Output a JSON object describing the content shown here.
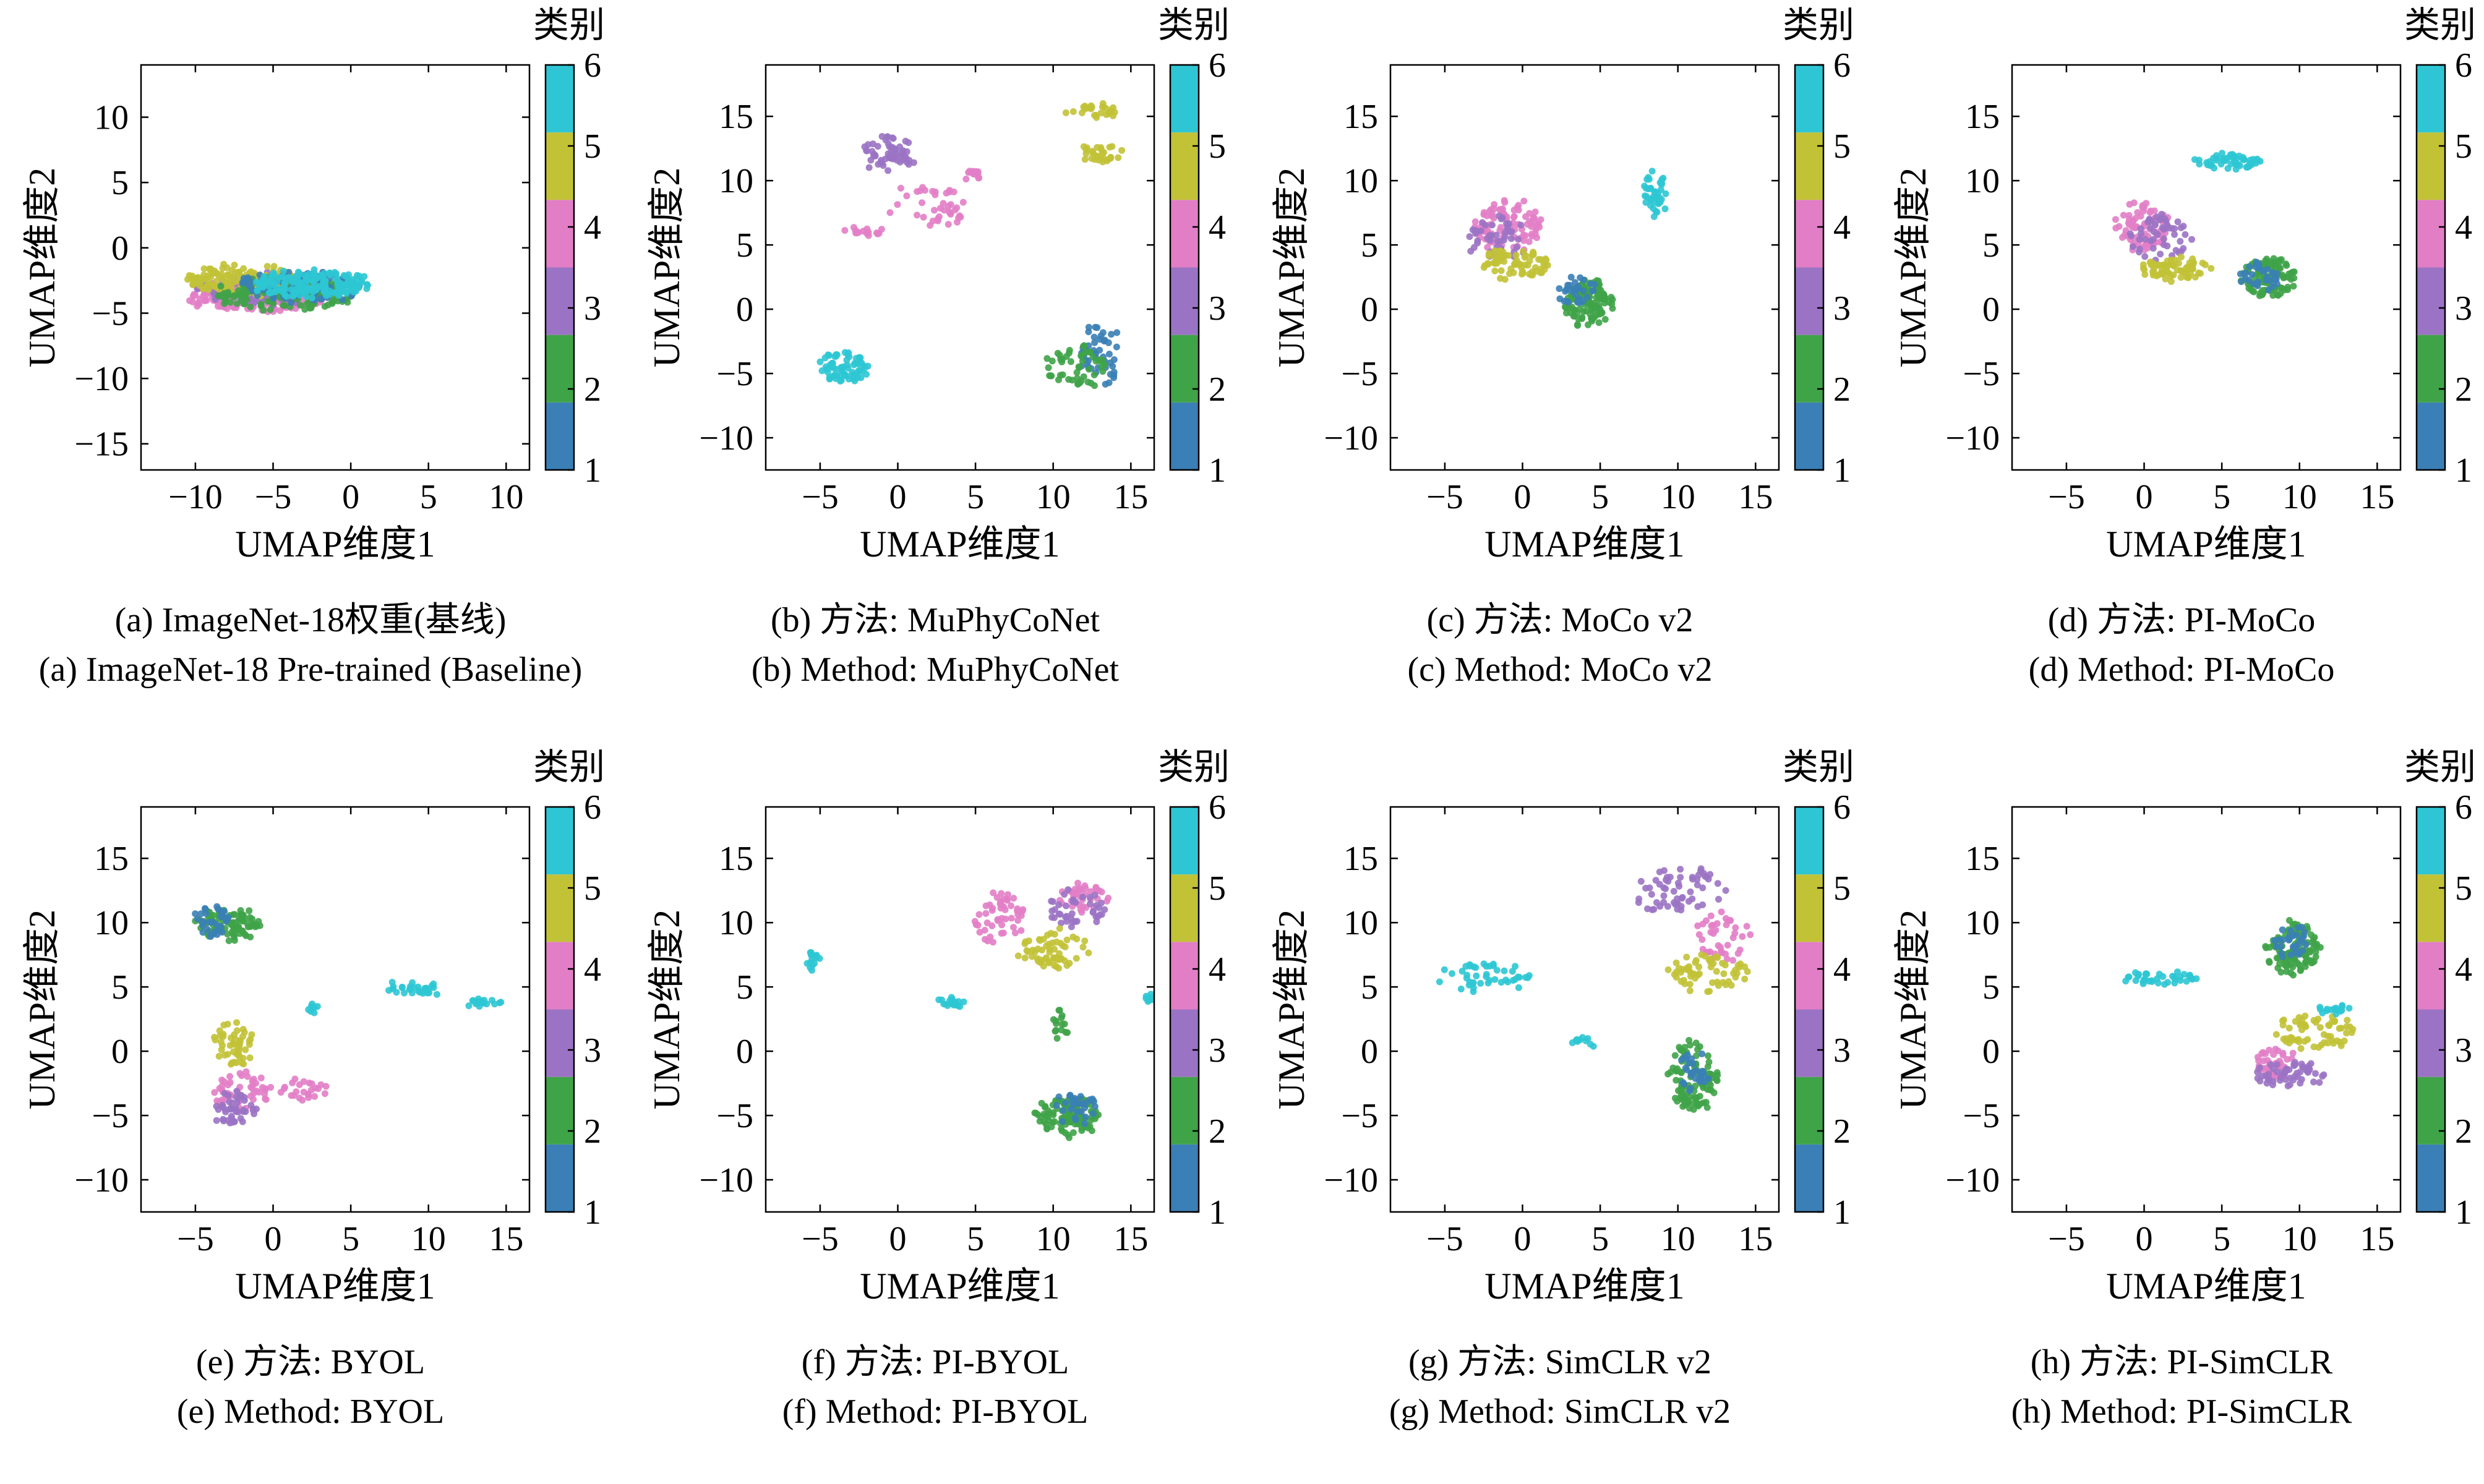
{
  "palette": {
    "1": "#3a7fb5",
    "2": "#3fa348",
    "3": "#9b73c4",
    "4": "#e27ec6",
    "5": "#c2c237",
    "6": "#2ec6d4"
  },
  "colorbar": {
    "title": "类别",
    "ticks": [
      "1",
      "2",
      "3",
      "4",
      "5",
      "6"
    ]
  },
  "chart_data": [
    {
      "type": "scatter",
      "id": "a",
      "caption_zh": "(a) ImageNet-18权重(基线)",
      "caption_en": "(a) ImageNet-18 Pre-trained (Baseline)",
      "xlabel": "UMAP维度1",
      "ylabel": "UMAP维度2",
      "xlim": [
        -13.5,
        11.5
      ],
      "ylim": [
        -17,
        14
      ],
      "xticks": [
        -10,
        -5,
        0,
        5,
        10
      ],
      "yticks": [
        -15,
        -10,
        -5,
        0,
        5,
        10
      ],
      "clusters": [
        {
          "cls": 4,
          "cx": -6.0,
          "cy": -3.8,
          "rx": 4.5,
          "ry": 1.0,
          "n": 170
        },
        {
          "cls": 3,
          "cx": -5.5,
          "cy": -3.2,
          "rx": 4.5,
          "ry": 1.2,
          "n": 150
        },
        {
          "cls": 5,
          "cx": -7.0,
          "cy": -2.5,
          "rx": 3.8,
          "ry": 1.0,
          "n": 140
        },
        {
          "cls": 2,
          "cx": -4.0,
          "cy": -3.5,
          "rx": 4.5,
          "ry": 1.2,
          "n": 150
        },
        {
          "cls": 1,
          "cx": -3.5,
          "cy": -3.0,
          "rx": 4.0,
          "ry": 1.2,
          "n": 90
        },
        {
          "cls": 6,
          "cx": -2.5,
          "cy": -2.8,
          "rx": 3.8,
          "ry": 1.0,
          "n": 170
        }
      ]
    },
    {
      "type": "scatter",
      "id": "b",
      "caption_zh": "(b) 方法: MuPhyCoNet",
      "caption_en": "(b) Method: MuPhyCoNet",
      "xlabel": "UMAP维度1",
      "ylabel": "UMAP维度2",
      "xlim": [
        -8.5,
        16.5
      ],
      "ylim": [
        -12.5,
        19
      ],
      "xticks": [
        -5,
        0,
        5,
        10,
        15
      ],
      "yticks": [
        -10,
        -5,
        0,
        5,
        10,
        15
      ],
      "clusters": [
        {
          "cls": 3,
          "cx": -0.5,
          "cy": 12.0,
          "rx": 1.6,
          "ry": 1.6,
          "n": 60
        },
        {
          "cls": 4,
          "cx": 2.0,
          "cy": 8.0,
          "rx": 2.8,
          "ry": 1.6,
          "n": 40
        },
        {
          "cls": 4,
          "cx": -2.5,
          "cy": 6.0,
          "rx": 1.5,
          "ry": 0.3,
          "n": 15
        },
        {
          "cls": 4,
          "cx": 4.8,
          "cy": 10.5,
          "rx": 0.5,
          "ry": 0.4,
          "n": 15
        },
        {
          "cls": 5,
          "cx": 12.5,
          "cy": 15.5,
          "rx": 1.6,
          "ry": 0.5,
          "n": 25
        },
        {
          "cls": 5,
          "cx": 13.0,
          "cy": 12.0,
          "rx": 1.6,
          "ry": 0.6,
          "n": 30
        },
        {
          "cls": 6,
          "cx": -3.5,
          "cy": -4.5,
          "rx": 1.6,
          "ry": 1.2,
          "n": 70
        },
        {
          "cls": 1,
          "cx": 13.0,
          "cy": -3.5,
          "rx": 1.5,
          "ry": 2.5,
          "n": 50
        },
        {
          "cls": 2,
          "cx": 11.5,
          "cy": -4.5,
          "rx": 2.0,
          "ry": 1.5,
          "n": 50
        }
      ]
    },
    {
      "type": "scatter",
      "id": "c",
      "caption_zh": "(c) 方法: MoCo v2",
      "caption_en": "(c) Method: MoCo v2",
      "xlabel": "UMAP维度1",
      "ylabel": "UMAP维度2",
      "xlim": [
        -8.5,
        16.5
      ],
      "ylim": [
        -12.5,
        19
      ],
      "xticks": [
        -5,
        0,
        5,
        10,
        15
      ],
      "yticks": [
        -10,
        -5,
        0,
        5,
        10,
        15
      ],
      "clusters": [
        {
          "cls": 4,
          "cx": -1.0,
          "cy": 6.5,
          "rx": 2.2,
          "ry": 2.0,
          "n": 90
        },
        {
          "cls": 3,
          "cx": -1.5,
          "cy": 5.5,
          "rx": 2.0,
          "ry": 1.8,
          "n": 50
        },
        {
          "cls": 5,
          "cx": -0.5,
          "cy": 3.5,
          "rx": 2.2,
          "ry": 1.2,
          "n": 70
        },
        {
          "cls": 2,
          "cx": 4.3,
          "cy": 0.5,
          "rx": 1.5,
          "ry": 1.8,
          "n": 110
        },
        {
          "cls": 1,
          "cx": 3.5,
          "cy": 1.5,
          "rx": 1.2,
          "ry": 1.2,
          "n": 30
        },
        {
          "cls": 6,
          "cx": 8.5,
          "cy": 9.0,
          "rx": 0.8,
          "ry": 1.8,
          "n": 40
        }
      ]
    },
    {
      "type": "scatter",
      "id": "d",
      "caption_zh": "(d) 方法: PI-MoCo",
      "caption_en": "(d) Method: PI-MoCo",
      "xlabel": "UMAP维度1",
      "ylabel": "UMAP维度2",
      "xlim": [
        -8.5,
        16.5
      ],
      "ylim": [
        -12.5,
        19
      ],
      "xticks": [
        -5,
        0,
        5,
        10,
        15
      ],
      "yticks": [
        -10,
        -5,
        0,
        5,
        10,
        15
      ],
      "clusters": [
        {
          "cls": 6,
          "cx": 5.5,
          "cy": 11.5,
          "rx": 2.2,
          "ry": 0.6,
          "n": 50
        },
        {
          "cls": 4,
          "cx": 0.0,
          "cy": 6.5,
          "rx": 1.8,
          "ry": 1.8,
          "n": 80
        },
        {
          "cls": 3,
          "cx": 1.0,
          "cy": 5.5,
          "rx": 2.0,
          "ry": 1.8,
          "n": 50
        },
        {
          "cls": 5,
          "cx": 2.0,
          "cy": 3.2,
          "rx": 2.2,
          "ry": 0.9,
          "n": 70
        },
        {
          "cls": 2,
          "cx": 8.0,
          "cy": 2.5,
          "rx": 1.8,
          "ry": 1.5,
          "n": 100
        },
        {
          "cls": 1,
          "cx": 7.5,
          "cy": 2.5,
          "rx": 1.3,
          "ry": 1.2,
          "n": 30
        }
      ]
    },
    {
      "type": "scatter",
      "id": "e",
      "caption_zh": "(e) 方法: BYOL",
      "caption_en": "(e) Method: BYOL",
      "xlabel": "UMAP维度1",
      "ylabel": "UMAP维度2",
      "xlim": [
        -8.5,
        16.5
      ],
      "ylim": [
        -12.5,
        19
      ],
      "xticks": [
        -5,
        0,
        5,
        10,
        15
      ],
      "yticks": [
        -10,
        -5,
        0,
        5,
        10,
        15
      ],
      "clusters": [
        {
          "cls": 2,
          "cx": -3.0,
          "cy": 9.8,
          "rx": 2.0,
          "ry": 1.2,
          "n": 90
        },
        {
          "cls": 1,
          "cx": -4.0,
          "cy": 10.0,
          "rx": 1.2,
          "ry": 1.2,
          "n": 35
        },
        {
          "cls": 5,
          "cx": -2.5,
          "cy": 0.5,
          "rx": 1.2,
          "ry": 1.8,
          "n": 50
        },
        {
          "cls": 4,
          "cx": -2.0,
          "cy": -3.2,
          "rx": 1.8,
          "ry": 1.5,
          "n": 50
        },
        {
          "cls": 4,
          "cx": 2.0,
          "cy": -3.0,
          "rx": 1.5,
          "ry": 0.8,
          "n": 25
        },
        {
          "cls": 3,
          "cx": -2.5,
          "cy": -4.5,
          "rx": 1.5,
          "ry": 1.5,
          "n": 45
        },
        {
          "cls": 6,
          "cx": 9.0,
          "cy": 4.8,
          "rx": 1.8,
          "ry": 0.4,
          "n": 30
        },
        {
          "cls": 6,
          "cx": 13.5,
          "cy": 3.8,
          "rx": 1.2,
          "ry": 0.3,
          "n": 20
        },
        {
          "cls": 6,
          "cx": 2.5,
          "cy": 3.3,
          "rx": 0.3,
          "ry": 0.4,
          "n": 8
        }
      ]
    },
    {
      "type": "scatter",
      "id": "f",
      "caption_zh": "(f) 方法: PI-BYOL",
      "caption_en": "(f) Method: PI-BYOL",
      "xlabel": "UMAP维度1",
      "ylabel": "UMAP维度2",
      "xlim": [
        -8.5,
        16.5
      ],
      "ylim": [
        -12.5,
        19
      ],
      "xticks": [
        -5,
        0,
        5,
        10,
        15
      ],
      "yticks": [
        -10,
        -5,
        0,
        5,
        10,
        15
      ],
      "clusters": [
        {
          "cls": 4,
          "cx": 6.5,
          "cy": 10.5,
          "rx": 1.8,
          "ry": 2.0,
          "n": 50
        },
        {
          "cls": 4,
          "cx": 12.0,
          "cy": 12.0,
          "rx": 1.8,
          "ry": 1.0,
          "n": 40
        },
        {
          "cls": 3,
          "cx": 11.5,
          "cy": 11.0,
          "rx": 1.8,
          "ry": 1.6,
          "n": 40
        },
        {
          "cls": 5,
          "cx": 10.0,
          "cy": 8.0,
          "rx": 2.2,
          "ry": 1.5,
          "n": 60
        },
        {
          "cls": 2,
          "cx": 10.5,
          "cy": 2.0,
          "rx": 0.4,
          "ry": 1.2,
          "n": 15
        },
        {
          "cls": 2,
          "cx": 11.0,
          "cy": -5.0,
          "rx": 2.0,
          "ry": 1.5,
          "n": 110
        },
        {
          "cls": 1,
          "cx": 11.5,
          "cy": -4.5,
          "rx": 1.5,
          "ry": 1.2,
          "n": 30
        },
        {
          "cls": 6,
          "cx": -5.5,
          "cy": 7.0,
          "rx": 0.5,
          "ry": 0.8,
          "n": 15
        },
        {
          "cls": 6,
          "cx": 3.5,
          "cy": 3.8,
          "rx": 1.0,
          "ry": 0.4,
          "n": 20
        },
        {
          "cls": 6,
          "cx": 16.0,
          "cy": 4.2,
          "rx": 0.7,
          "ry": 0.3,
          "n": 10
        }
      ]
    },
    {
      "type": "scatter",
      "id": "g",
      "caption_zh": "(g) 方法: SimCLR v2",
      "caption_en": "(g) Method: SimCLR v2",
      "xlabel": "UMAP维度1",
      "ylabel": "UMAP维度2",
      "xlim": [
        -8.5,
        16.5
      ],
      "ylim": [
        -12.5,
        19
      ],
      "xticks": [
        -5,
        0,
        5,
        10,
        15
      ],
      "yticks": [
        -10,
        -5,
        0,
        5,
        10,
        15
      ],
      "clusters": [
        {
          "cls": 6,
          "cx": -2.5,
          "cy": 5.8,
          "rx": 3.0,
          "ry": 1.2,
          "n": 45
        },
        {
          "cls": 6,
          "cx": 4.0,
          "cy": 0.8,
          "rx": 1.0,
          "ry": 0.3,
          "n": 10
        },
        {
          "cls": 3,
          "cx": 10.0,
          "cy": 12.5,
          "rx": 3.0,
          "ry": 1.8,
          "n": 60
        },
        {
          "cls": 4,
          "cx": 13.0,
          "cy": 9.0,
          "rx": 1.8,
          "ry": 2.0,
          "n": 40
        },
        {
          "cls": 5,
          "cx": 12.0,
          "cy": 6.0,
          "rx": 2.5,
          "ry": 1.6,
          "n": 60
        },
        {
          "cls": 2,
          "cx": 11.0,
          "cy": -2.0,
          "rx": 1.6,
          "ry": 2.8,
          "n": 100
        },
        {
          "cls": 1,
          "cx": 11.0,
          "cy": -1.5,
          "rx": 1.2,
          "ry": 1.8,
          "n": 30
        }
      ]
    },
    {
      "type": "scatter",
      "id": "h",
      "caption_zh": "(h) 方法: PI-SimCLR",
      "caption_en": "(h) Method: PI-SimCLR",
      "xlabel": "UMAP维度1",
      "ylabel": "UMAP维度2",
      "xlim": [
        -8.5,
        16.5
      ],
      "ylim": [
        -12.5,
        19
      ],
      "xticks": [
        -5,
        0,
        5,
        10,
        15
      ],
      "yticks": [
        -10,
        -5,
        0,
        5,
        10,
        15
      ],
      "clusters": [
        {
          "cls": 6,
          "cx": 1.0,
          "cy": 5.7,
          "rx": 2.5,
          "ry": 0.4,
          "n": 40
        },
        {
          "cls": 2,
          "cx": 9.5,
          "cy": 8.0,
          "rx": 1.8,
          "ry": 2.0,
          "n": 110
        },
        {
          "cls": 1,
          "cx": 9.5,
          "cy": 8.5,
          "rx": 1.2,
          "ry": 1.2,
          "n": 30
        },
        {
          "cls": 5,
          "cx": 11.0,
          "cy": 1.5,
          "rx": 2.5,
          "ry": 1.5,
          "n": 60
        },
        {
          "cls": 6,
          "cx": 12.0,
          "cy": 3.3,
          "rx": 1.2,
          "ry": 0.4,
          "n": 15
        },
        {
          "cls": 4,
          "cx": 8.5,
          "cy": -1.0,
          "rx": 1.5,
          "ry": 1.2,
          "n": 40
        },
        {
          "cls": 3,
          "cx": 9.5,
          "cy": -1.8,
          "rx": 2.5,
          "ry": 1.0,
          "n": 55
        }
      ]
    }
  ]
}
